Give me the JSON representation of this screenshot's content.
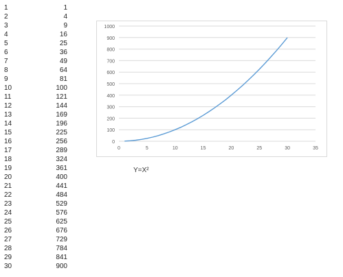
{
  "spreadsheet": {
    "rows": [
      {
        "x": "1",
        "y": "1"
      },
      {
        "x": "2",
        "y": "4"
      },
      {
        "x": "3",
        "y": "9"
      },
      {
        "x": "4",
        "y": "16"
      },
      {
        "x": "5",
        "y": "25"
      },
      {
        "x": "6",
        "y": "36"
      },
      {
        "x": "7",
        "y": "49"
      },
      {
        "x": "8",
        "y": "64"
      },
      {
        "x": "9",
        "y": "81"
      },
      {
        "x": "10",
        "y": "100"
      },
      {
        "x": "11",
        "y": "121"
      },
      {
        "x": "12",
        "y": "144"
      },
      {
        "x": "13",
        "y": "169"
      },
      {
        "x": "14",
        "y": "196"
      },
      {
        "x": "15",
        "y": "225"
      },
      {
        "x": "16",
        "y": "256"
      },
      {
        "x": "17",
        "y": "289"
      },
      {
        "x": "18",
        "y": "324"
      },
      {
        "x": "19",
        "y": "361"
      },
      {
        "x": "20",
        "y": "400"
      },
      {
        "x": "21",
        "y": "441"
      },
      {
        "x": "22",
        "y": "484"
      },
      {
        "x": "23",
        "y": "529"
      },
      {
        "x": "24",
        "y": "576"
      },
      {
        "x": "25",
        "y": "625"
      },
      {
        "x": "26",
        "y": "676"
      },
      {
        "x": "27",
        "y": "729"
      },
      {
        "x": "28",
        "y": "784"
      },
      {
        "x": "29",
        "y": "841"
      },
      {
        "x": "30",
        "y": "900"
      }
    ]
  },
  "caption": "Y=X²",
  "chart_data": {
    "type": "line",
    "title": "",
    "xlabel": "",
    "ylabel": "",
    "xlim": [
      0,
      35
    ],
    "ylim": [
      0,
      1000
    ],
    "x_ticks": [
      0,
      5,
      10,
      15,
      20,
      25,
      30,
      35
    ],
    "y_ticks": [
      0,
      100,
      200,
      300,
      400,
      500,
      600,
      700,
      800,
      900,
      1000
    ],
    "grid": "horizontal",
    "legend": "none",
    "line_color": "#5b9bd5",
    "series": [
      {
        "x": [
          1,
          2,
          3,
          4,
          5,
          6,
          7,
          8,
          9,
          10,
          11,
          12,
          13,
          14,
          15,
          16,
          17,
          18,
          19,
          20,
          21,
          22,
          23,
          24,
          25,
          26,
          27,
          28,
          29,
          30
        ],
        "values": [
          1,
          4,
          9,
          16,
          25,
          36,
          49,
          64,
          81,
          100,
          121,
          144,
          169,
          196,
          225,
          256,
          289,
          324,
          361,
          400,
          441,
          484,
          529,
          576,
          625,
          676,
          729,
          784,
          841,
          900
        ]
      }
    ]
  }
}
